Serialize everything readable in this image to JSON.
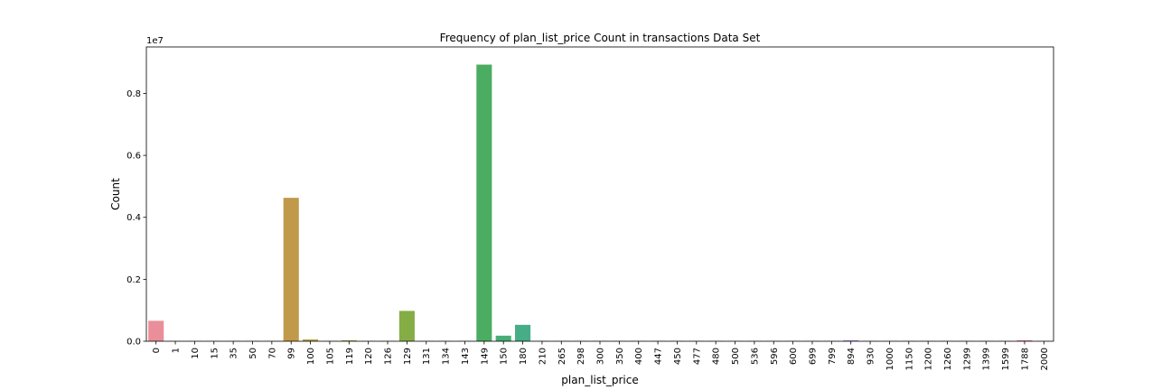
{
  "chart_data": {
    "type": "bar",
    "title": "Frequency of plan_list_price Count in transactions Data Set",
    "xlabel": "plan_list_price",
    "ylabel": "Count",
    "y_offset_label": "1e7",
    "ylim": [
      0,
      9.5
    ],
    "yticks": [
      "0.0",
      "0.2",
      "0.4",
      "0.6",
      "0.8"
    ],
    "ytick_values": [
      0,
      2,
      4,
      6,
      8
    ],
    "categories": [
      "0",
      "1",
      "10",
      "15",
      "35",
      "50",
      "70",
      "99",
      "100",
      "105",
      "119",
      "120",
      "126",
      "129",
      "131",
      "134",
      "143",
      "149",
      "150",
      "180",
      "210",
      "265",
      "298",
      "300",
      "350",
      "400",
      "447",
      "450",
      "477",
      "480",
      "500",
      "536",
      "596",
      "600",
      "699",
      "799",
      "894",
      "930",
      "1000",
      "1150",
      "1200",
      "1260",
      "1299",
      "1399",
      "1599",
      "1788",
      "2000"
    ],
    "values": [
      0.66,
      0.01,
      0.01,
      0.01,
      0.01,
      0.01,
      0.01,
      4.63,
      0.06,
      0.01,
      0.03,
      0.01,
      0.01,
      0.98,
      0.01,
      0.01,
      0.01,
      8.93,
      0.18,
      0.53,
      0.01,
      0.01,
      0.01,
      0.01,
      0.01,
      0.01,
      0.01,
      0.01,
      0.01,
      0.01,
      0.01,
      0.01,
      0.01,
      0.01,
      0.01,
      0.01,
      0.03,
      0.01,
      0.01,
      0.01,
      0.01,
      0.01,
      0.01,
      0.01,
      0.01,
      0.03,
      0.01
    ],
    "colors": [
      "#ea8f99",
      "#e99278",
      "#dd9a63",
      "#d39f5a",
      "#c9a350",
      "#c0a249",
      "#b8a347",
      "#c1994a",
      "#b3a441",
      "#aaa542",
      "#a2a842",
      "#97aa43",
      "#8cad44",
      "#85ad45",
      "#7cae44",
      "#6daf44",
      "#5db045",
      "#4bad61",
      "#45ae75",
      "#45ae86",
      "#44ae91",
      "#44ad9c",
      "#45aca7",
      "#45abb0",
      "#47aab9",
      "#49a9c1",
      "#4ba8c9",
      "#4ea6d2",
      "#53a3da",
      "#5aa0e1",
      "#649ce8",
      "#7097ed",
      "#7e92f0",
      "#8c8ef1",
      "#9a8af1",
      "#a786f0",
      "#b182ec",
      "#bd7fe8",
      "#c77ce3",
      "#d07ade",
      "#d777d7",
      "#de75cf",
      "#e375c6",
      "#e676bb",
      "#e879ae",
      "#e97ca2",
      "#ea8297"
    ]
  }
}
